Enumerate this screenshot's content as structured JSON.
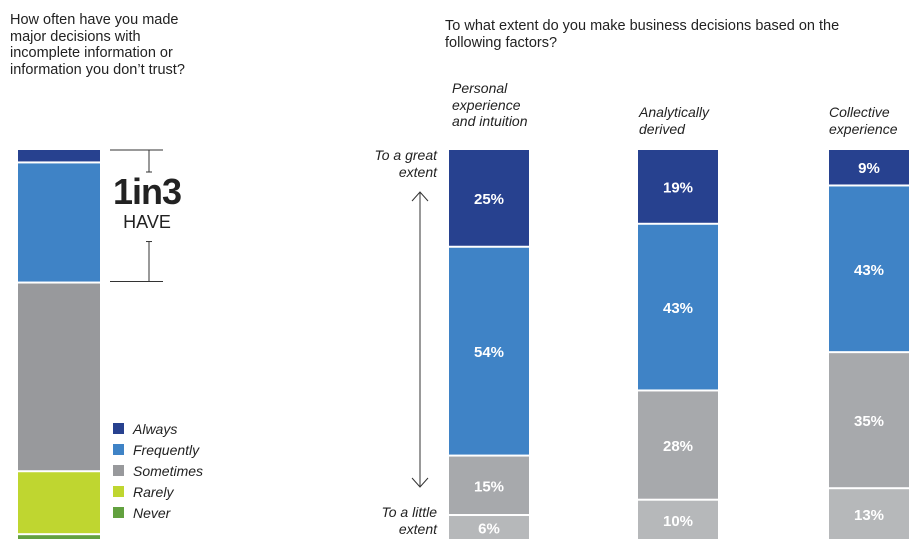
{
  "left_question": "How often have you made major decisions with incomplete information or information you don’t trust?",
  "right_question": "To what extent do you make business decisions based on the following factors?",
  "callout": {
    "big": "1in3",
    "small": "HAVE"
  },
  "axis": {
    "top_label": "To a great extent",
    "bottom_label": "To a little extent"
  },
  "colors": {
    "always": "#27418f",
    "frequently": "#3f83c6",
    "sometimes": "#a7a9ac",
    "sometimes_left": "#98999c",
    "little": "#b6b8ba",
    "rarely": "#bfd630",
    "never": "#62a13f",
    "lines": "#333333"
  },
  "chart_data": [
    {
      "type": "bar",
      "stacked": true,
      "title": "How often have you made major decisions with incomplete information or information you don’t trust?",
      "categories": [
        ""
      ],
      "series": [
        {
          "name": "Always",
          "values": [
            3
          ]
        },
        {
          "name": "Frequently",
          "values": [
            31
          ]
        },
        {
          "name": "Sometimes",
          "values": [
            49
          ]
        },
        {
          "name": "Rarely",
          "values": [
            16
          ]
        },
        {
          "name": "Never",
          "values": [
            1
          ]
        }
      ],
      "legend": {
        "position": "bottom-right",
        "items": [
          "Always",
          "Frequently",
          "Sometimes",
          "Rarely",
          "Never"
        ]
      },
      "annotation": "1in3 HAVE"
    },
    {
      "type": "bar",
      "stacked": true,
      "title": "To what extent do you make business decisions based on the following factors?",
      "categories": [
        "Personal experience and intuition",
        "Analytically derived",
        "Collective experience"
      ],
      "series": [
        {
          "values": [
            25,
            19,
            9
          ]
        },
        {
          "values": [
            54,
            43,
            43
          ]
        },
        {
          "values": [
            15,
            28,
            35
          ]
        },
        {
          "values": [
            6,
            10,
            13
          ]
        }
      ],
      "ylabel_top": "To a great extent",
      "ylabel_bottom": "To a little extent"
    }
  ]
}
